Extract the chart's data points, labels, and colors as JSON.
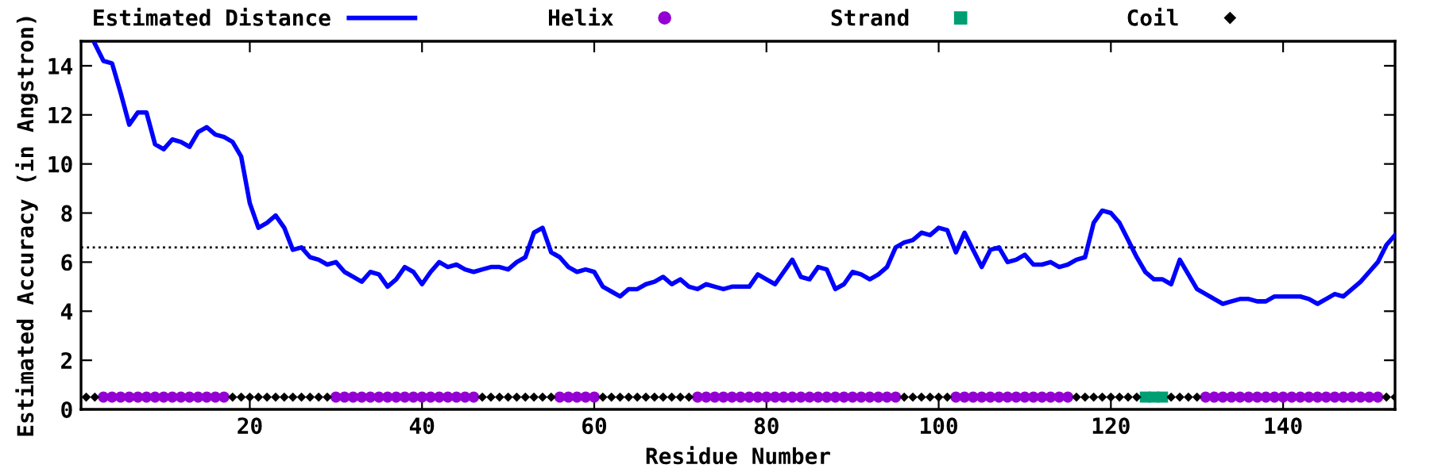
{
  "chart_data": {
    "type": "line",
    "xlabel": "Residue Number",
    "ylabel": "Estimated Accuracy (in Angstron)",
    "xlim": [
      0.4,
      153
    ],
    "xticks": [
      20,
      40,
      60,
      80,
      100,
      120,
      140
    ],
    "ylim": [
      0,
      15
    ],
    "yticks": [
      0,
      2,
      4,
      6,
      8,
      10,
      12,
      14
    ],
    "grid": false,
    "legend": "top",
    "ref_lines": [
      {
        "axis": "y",
        "value": 6.6,
        "color": "#000000",
        "line_style": "dotted"
      }
    ],
    "series": [
      {
        "name": "Estimated Distance",
        "color": "#0000ff",
        "marker": "none",
        "line_style": "solid",
        "x": [
          2,
          3,
          4,
          5,
          6,
          7,
          8,
          9,
          10,
          11,
          12,
          13,
          14,
          15,
          16,
          17,
          18,
          19,
          20,
          21,
          22,
          23,
          24,
          25,
          26,
          27,
          28,
          29,
          30,
          31,
          32,
          33,
          34,
          35,
          36,
          37,
          38,
          39,
          40,
          41,
          42,
          43,
          44,
          45,
          46,
          47,
          48,
          49,
          50,
          51,
          52,
          53,
          54,
          55,
          56,
          57,
          58,
          59,
          60,
          61,
          62,
          63,
          64,
          65,
          66,
          67,
          68,
          69,
          70,
          71,
          72,
          73,
          74,
          75,
          76,
          77,
          78,
          79,
          80,
          81,
          82,
          83,
          84,
          85,
          86,
          87,
          88,
          89,
          90,
          91,
          92,
          93,
          94,
          95,
          96,
          97,
          98,
          99,
          100,
          101,
          102,
          103,
          104,
          105,
          106,
          107,
          108,
          109,
          110,
          111,
          112,
          113,
          114,
          115,
          116,
          117,
          118,
          119,
          120,
          121,
          122,
          123,
          124,
          125,
          126,
          127,
          128,
          129,
          130,
          131,
          132,
          133,
          134,
          135,
          136,
          137,
          138,
          139,
          140,
          141,
          142,
          143,
          144,
          145,
          146,
          147,
          148,
          149,
          150,
          151,
          152,
          153
        ],
        "values": [
          14.9,
          14.2,
          14.1,
          12.9,
          11.6,
          12.1,
          12.1,
          10.8,
          10.6,
          11.0,
          10.9,
          10.7,
          11.3,
          11.5,
          11.2,
          11.1,
          10.9,
          10.3,
          8.4,
          7.4,
          7.6,
          7.9,
          7.4,
          6.5,
          6.6,
          6.2,
          6.1,
          5.9,
          6.0,
          5.6,
          5.4,
          5.2,
          5.6,
          5.5,
          5.0,
          5.3,
          5.8,
          5.6,
          5.1,
          5.6,
          6.0,
          5.8,
          5.9,
          5.7,
          5.6,
          5.7,
          5.8,
          5.8,
          5.7,
          6.0,
          6.2,
          7.2,
          7.4,
          6.4,
          6.2,
          5.8,
          5.6,
          5.7,
          5.6,
          5.0,
          4.8,
          4.6,
          4.9,
          4.9,
          5.1,
          5.2,
          5.4,
          5.1,
          5.3,
          5.0,
          4.9,
          5.1,
          5.0,
          4.9,
          5.0,
          5.0,
          5.0,
          5.5,
          5.3,
          5.1,
          5.6,
          6.1,
          5.4,
          5.3,
          5.8,
          5.7,
          4.9,
          5.1,
          5.6,
          5.5,
          5.3,
          5.5,
          5.8,
          6.6,
          6.8,
          6.9,
          7.2,
          7.1,
          7.4,
          7.3,
          6.4,
          7.2,
          6.5,
          5.8,
          6.5,
          6.6,
          6.0,
          6.1,
          6.3,
          5.9,
          5.9,
          6.0,
          5.8,
          5.9,
          6.1,
          6.2,
          7.6,
          8.1,
          8.0,
          7.6,
          6.9,
          6.2,
          5.6,
          5.3,
          5.3,
          5.1,
          6.1,
          5.5,
          4.9,
          4.7,
          4.5,
          4.3,
          4.4,
          4.5,
          4.5,
          4.4,
          4.4,
          4.6,
          4.6,
          4.6,
          4.6,
          4.5,
          4.3,
          4.5,
          4.7,
          4.6,
          4.9,
          5.2,
          5.6,
          6.0,
          6.7,
          7.1
        ]
      },
      {
        "name": "Helix",
        "type": "scatter",
        "color": "#9400d3",
        "marker": "circle",
        "x": [
          3,
          4,
          5,
          6,
          7,
          8,
          9,
          10,
          11,
          12,
          13,
          14,
          15,
          16,
          17,
          30,
          31,
          32,
          33,
          34,
          35,
          36,
          37,
          38,
          39,
          40,
          41,
          42,
          43,
          44,
          45,
          46,
          56,
          57,
          58,
          59,
          60,
          72,
          73,
          74,
          75,
          76,
          77,
          78,
          79,
          80,
          81,
          82,
          83,
          84,
          85,
          86,
          87,
          88,
          89,
          90,
          91,
          92,
          93,
          94,
          95,
          102,
          103,
          104,
          105,
          106,
          107,
          108,
          109,
          110,
          111,
          112,
          113,
          114,
          115,
          131,
          132,
          133,
          134,
          135,
          136,
          137,
          138,
          139,
          140,
          141,
          142,
          143,
          144,
          145,
          146,
          147,
          148,
          149,
          150,
          151
        ],
        "values": [
          0.5,
          0.5,
          0.5,
          0.5,
          0.5,
          0.5,
          0.5,
          0.5,
          0.5,
          0.5,
          0.5,
          0.5,
          0.5,
          0.5,
          0.5,
          0.5,
          0.5,
          0.5,
          0.5,
          0.5,
          0.5,
          0.5,
          0.5,
          0.5,
          0.5,
          0.5,
          0.5,
          0.5,
          0.5,
          0.5,
          0.5,
          0.5,
          0.5,
          0.5,
          0.5,
          0.5,
          0.5,
          0.5,
          0.5,
          0.5,
          0.5,
          0.5,
          0.5,
          0.5,
          0.5,
          0.5,
          0.5,
          0.5,
          0.5,
          0.5,
          0.5,
          0.5,
          0.5,
          0.5,
          0.5,
          0.5,
          0.5,
          0.5,
          0.5,
          0.5,
          0.5,
          0.5,
          0.5,
          0.5,
          0.5,
          0.5,
          0.5,
          0.5,
          0.5,
          0.5,
          0.5,
          0.5,
          0.5,
          0.5,
          0.5,
          0.5,
          0.5,
          0.5,
          0.5,
          0.5,
          0.5,
          0.5,
          0.5,
          0.5,
          0.5,
          0.5,
          0.5,
          0.5,
          0.5,
          0.5,
          0.5,
          0.5,
          0.5,
          0.5,
          0.5,
          0.5
        ]
      },
      {
        "name": "Strand",
        "type": "scatter",
        "color": "#009e73",
        "marker": "square",
        "x": [
          124,
          125,
          126
        ],
        "values": [
          0.5,
          0.5,
          0.5
        ]
      },
      {
        "name": "Coil",
        "type": "scatter",
        "color": "#000000",
        "marker": "diamond",
        "x": [
          1,
          2,
          18,
          19,
          20,
          21,
          22,
          23,
          24,
          25,
          26,
          27,
          28,
          29,
          47,
          48,
          49,
          50,
          51,
          52,
          53,
          54,
          55,
          61,
          62,
          63,
          64,
          65,
          66,
          67,
          68,
          69,
          70,
          71,
          96,
          97,
          98,
          99,
          100,
          101,
          116,
          117,
          118,
          119,
          120,
          121,
          122,
          123,
          127,
          128,
          129,
          130,
          152,
          153
        ],
        "values": [
          0.5,
          0.5,
          0.5,
          0.5,
          0.5,
          0.5,
          0.5,
          0.5,
          0.5,
          0.5,
          0.5,
          0.5,
          0.5,
          0.5,
          0.5,
          0.5,
          0.5,
          0.5,
          0.5,
          0.5,
          0.5,
          0.5,
          0.5,
          0.5,
          0.5,
          0.5,
          0.5,
          0.5,
          0.5,
          0.5,
          0.5,
          0.5,
          0.5,
          0.5,
          0.5,
          0.5,
          0.5,
          0.5,
          0.5,
          0.5,
          0.5,
          0.5,
          0.5,
          0.5,
          0.5,
          0.5,
          0.5,
          0.5,
          0.5,
          0.5,
          0.5,
          0.5,
          0.5,
          0.5
        ]
      }
    ]
  }
}
